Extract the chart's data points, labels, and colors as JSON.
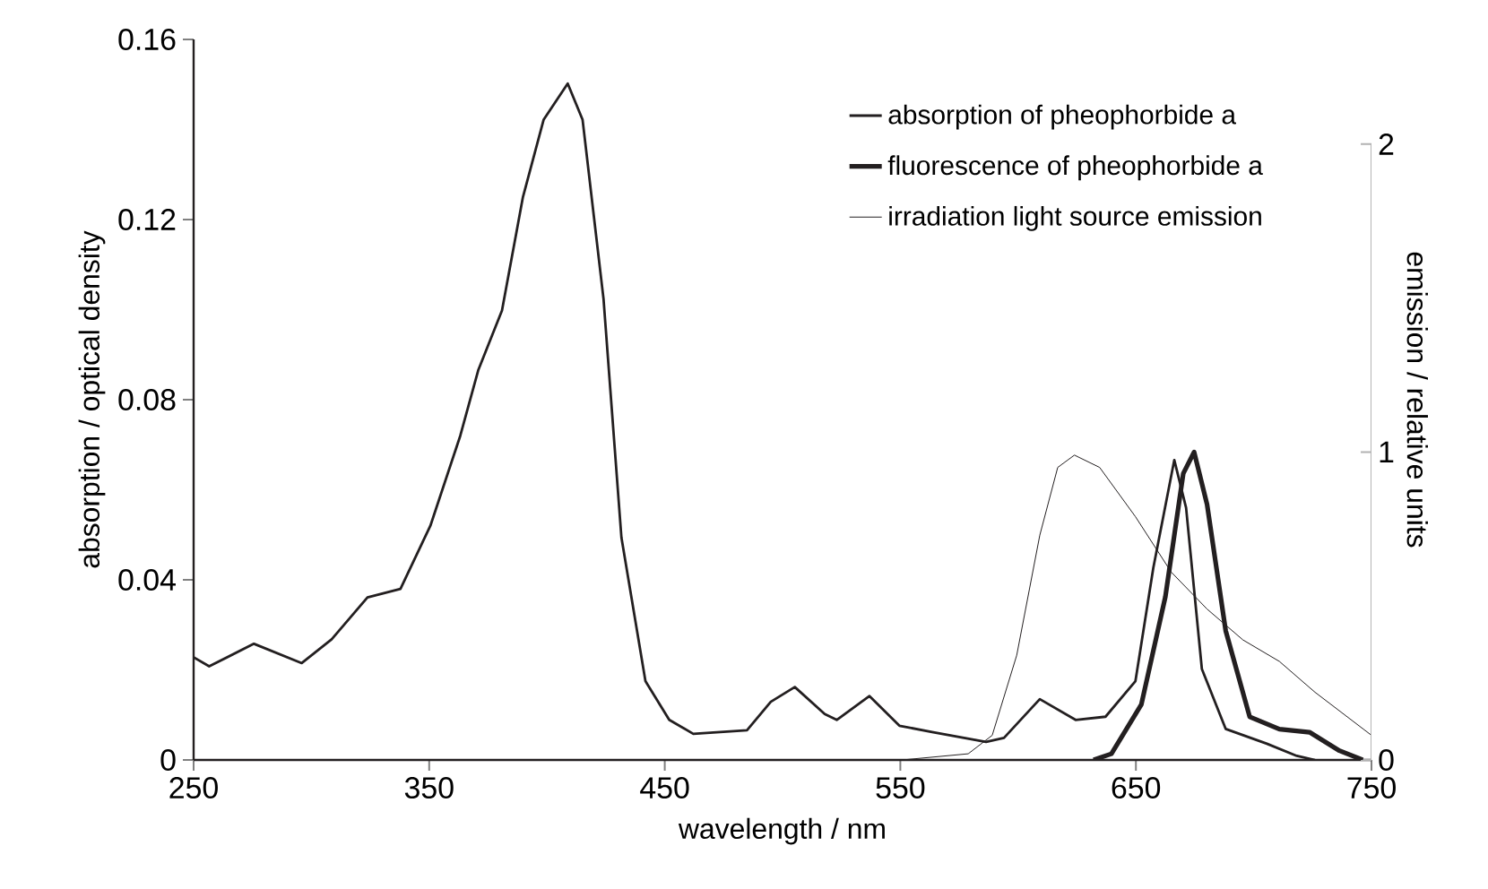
{
  "chart_data": {
    "type": "line",
    "xlabel": "wavelength / nm",
    "ylabel": "absorption / optical density",
    "y2label": "emission / relative units",
    "xlim": [
      250,
      750
    ],
    "xticks": [
      250,
      350,
      450,
      550,
      650,
      750
    ],
    "ylim": [
      0,
      0.16
    ],
    "yticks": [
      0,
      0.04,
      0.08,
      0.12,
      0.16
    ],
    "y2lim": [
      0,
      2.34
    ],
    "y2ticks": [
      0,
      1,
      2
    ],
    "legend": "top right",
    "series": [
      {
        "name": "absorption of pheophorbide a",
        "color": "#231f20",
        "x": [
          250,
          256.6,
          275.6,
          295.9,
          308.6,
          323.8,
          337.8,
          350.5,
          363.2,
          370.8,
          380.9,
          389.8,
          398.6,
          408.8,
          415.1,
          424,
          431.6,
          441.8,
          451.9,
          462.1,
          484.9,
          495,
          505.2,
          517.9,
          523,
          536.9,
          549.6,
          563.5,
          586.4,
          594,
          609.2,
          624.4,
          637.1,
          649.8,
          657.4,
          666.3,
          671.3,
          678,
          688.1,
          705.6,
          718.3,
          726
        ],
        "values": [
          0.0228,
          0.0208,
          0.0258,
          0.0215,
          0.0268,
          0.0361,
          0.038,
          0.052,
          0.072,
          0.0865,
          0.0998,
          0.125,
          0.1422,
          0.1502,
          0.1422,
          0.1024,
          0.0494,
          0.0175,
          0.0089,
          0.0058,
          0.0066,
          0.0129,
          0.0162,
          0.0102,
          0.0089,
          0.0142,
          0.0076,
          0.0062,
          0.004,
          0.0049,
          0.0135,
          0.0089,
          0.0096,
          0.0175,
          0.0427,
          0.0666,
          0.056,
          0.0202,
          0.0069,
          0.0036,
          0.0009,
          0
        ]
      },
      {
        "name": "fluorescence of pheophorbide a",
        "color": "#231f20",
        "axis": "y2",
        "x": [
          632,
          639.6,
          652.3,
          662.5,
          670.1,
          674.7,
          680.2,
          688.1,
          698.3,
          710.9,
          723.7,
          736.4,
          746.3
        ],
        "values": [
          0,
          0.02,
          0.18,
          0.53,
          0.93,
          1.0,
          0.83,
          0.42,
          0.14,
          0.1,
          0.09,
          0.03,
          0
        ]
      },
      {
        "name": "irradiation light source emission",
        "color": "#231f20",
        "axis": "y2",
        "x": [
          550.8,
          578.8,
          589,
          599.4,
          609.2,
          616.8,
          623.9,
          634.6,
          649.8,
          665,
          680.2,
          695.4,
          710.9,
          726,
          750
        ],
        "values": [
          0,
          0.02,
          0.08,
          0.34,
          0.73,
          0.95,
          0.99,
          0.95,
          0.79,
          0.61,
          0.49,
          0.39,
          0.32,
          0.22,
          0.08
        ]
      }
    ]
  }
}
